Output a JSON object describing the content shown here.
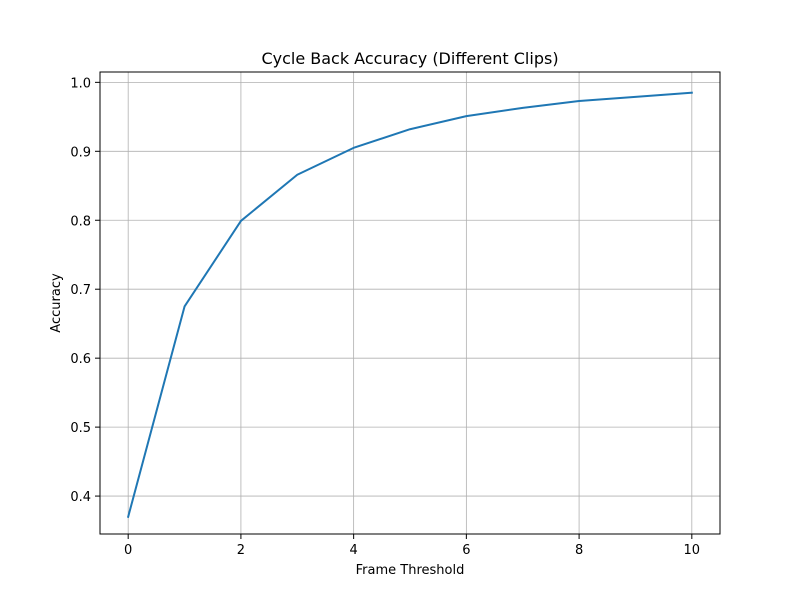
{
  "chart_data": {
    "type": "line",
    "title": "Cycle Back Accuracy (Different Clips)",
    "xlabel": "Frame Threshold",
    "ylabel": "Accuracy",
    "xlim": [
      -0.5,
      10.5
    ],
    "ylim": [
      0.345,
      1.015
    ],
    "xticks": [
      0,
      2,
      4,
      6,
      8,
      10
    ],
    "yticks": [
      0.4,
      0.5,
      0.6,
      0.7,
      0.8,
      0.9,
      1.0
    ],
    "xtick_labels": [
      "0",
      "2",
      "4",
      "6",
      "8",
      "10"
    ],
    "ytick_labels": [
      "0.4",
      "0.5",
      "0.6",
      "0.7",
      "0.8",
      "0.9",
      "1.0"
    ],
    "grid": true,
    "series": [
      {
        "color": "#1f77b4",
        "x": [
          0,
          1,
          2,
          3,
          4,
          5,
          6,
          7,
          8,
          9,
          10
        ],
        "y": [
          0.37,
          0.675,
          0.799,
          0.866,
          0.905,
          0.932,
          0.951,
          0.963,
          0.973,
          0.979,
          0.985
        ]
      }
    ]
  }
}
